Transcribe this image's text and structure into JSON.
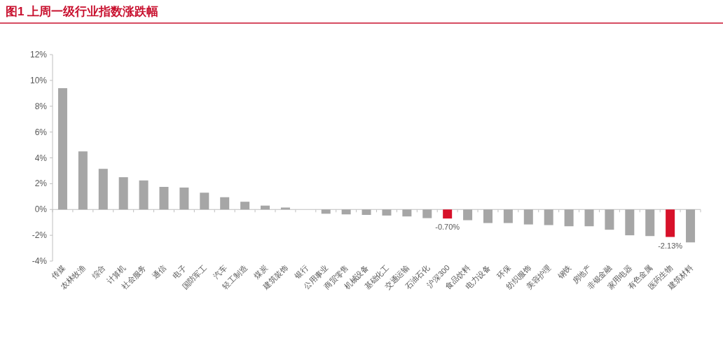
{
  "chart_data": {
    "type": "bar",
    "title": "图1  上周一级行业指数涨跌幅",
    "categories": [
      "传媒",
      "农林牧渔",
      "综合",
      "计算机",
      "社会服务",
      "通信",
      "电子",
      "国防军工",
      "汽车",
      "轻工制造",
      "煤炭",
      "建筑装饰",
      "银行",
      "公用事业",
      "商贸零售",
      "机械设备",
      "基础化工",
      "交通运输",
      "石油石化",
      "沪深300",
      "食品饮料",
      "电力设备",
      "环保",
      "纺织服饰",
      "美容护理",
      "钢铁",
      "房地产",
      "非银金融",
      "家用电器",
      "有色金属",
      "医药生物",
      "建筑材料"
    ],
    "values": [
      9.4,
      4.5,
      3.15,
      2.5,
      2.25,
      1.75,
      1.7,
      1.3,
      0.95,
      0.6,
      0.3,
      0.15,
      null,
      -0.33,
      -0.38,
      -0.42,
      -0.47,
      -0.54,
      -0.67,
      -0.7,
      -0.83,
      -1.05,
      -1.05,
      -1.16,
      -1.21,
      -1.3,
      -1.3,
      -1.57,
      -2.0,
      -2.06,
      -2.13,
      -2.55
    ],
    "colors": [
      "#a6a6a6",
      "#a6a6a6",
      "#a6a6a6",
      "#a6a6a6",
      "#a6a6a6",
      "#a6a6a6",
      "#a6a6a6",
      "#a6a6a6",
      "#a6a6a6",
      "#a6a6a6",
      "#a6a6a6",
      "#a6a6a6",
      "#a6a6a6",
      "#a6a6a6",
      "#a6a6a6",
      "#a6a6a6",
      "#a6a6a6",
      "#a6a6a6",
      "#a6a6a6",
      "#d7112a",
      "#a6a6a6",
      "#a6a6a6",
      "#a6a6a6",
      "#a6a6a6",
      "#a6a6a6",
      "#a6a6a6",
      "#a6a6a6",
      "#a6a6a6",
      "#a6a6a6",
      "#a6a6a6",
      "#d7112a",
      "#a6a6a6"
    ],
    "value_labels": [
      null,
      null,
      null,
      null,
      null,
      null,
      null,
      null,
      null,
      null,
      null,
      null,
      null,
      null,
      null,
      null,
      null,
      null,
      null,
      "-0.70%",
      null,
      null,
      null,
      null,
      null,
      null,
      null,
      null,
      null,
      null,
      "-2.13%",
      null
    ],
    "ylim": [
      -4,
      12
    ],
    "yticks": [
      {
        "value": -4,
        "label": "-4%"
      },
      {
        "value": -2,
        "label": "-2%"
      },
      {
        "value": 0,
        "label": "0%"
      },
      {
        "value": 2,
        "label": "2%"
      },
      {
        "value": 4,
        "label": "4%"
      },
      {
        "value": 6,
        "label": "6%"
      },
      {
        "value": 8,
        "label": "8%"
      },
      {
        "value": 10,
        "label": "10%"
      },
      {
        "value": 12,
        "label": "12%"
      }
    ],
    "relative": false
  }
}
